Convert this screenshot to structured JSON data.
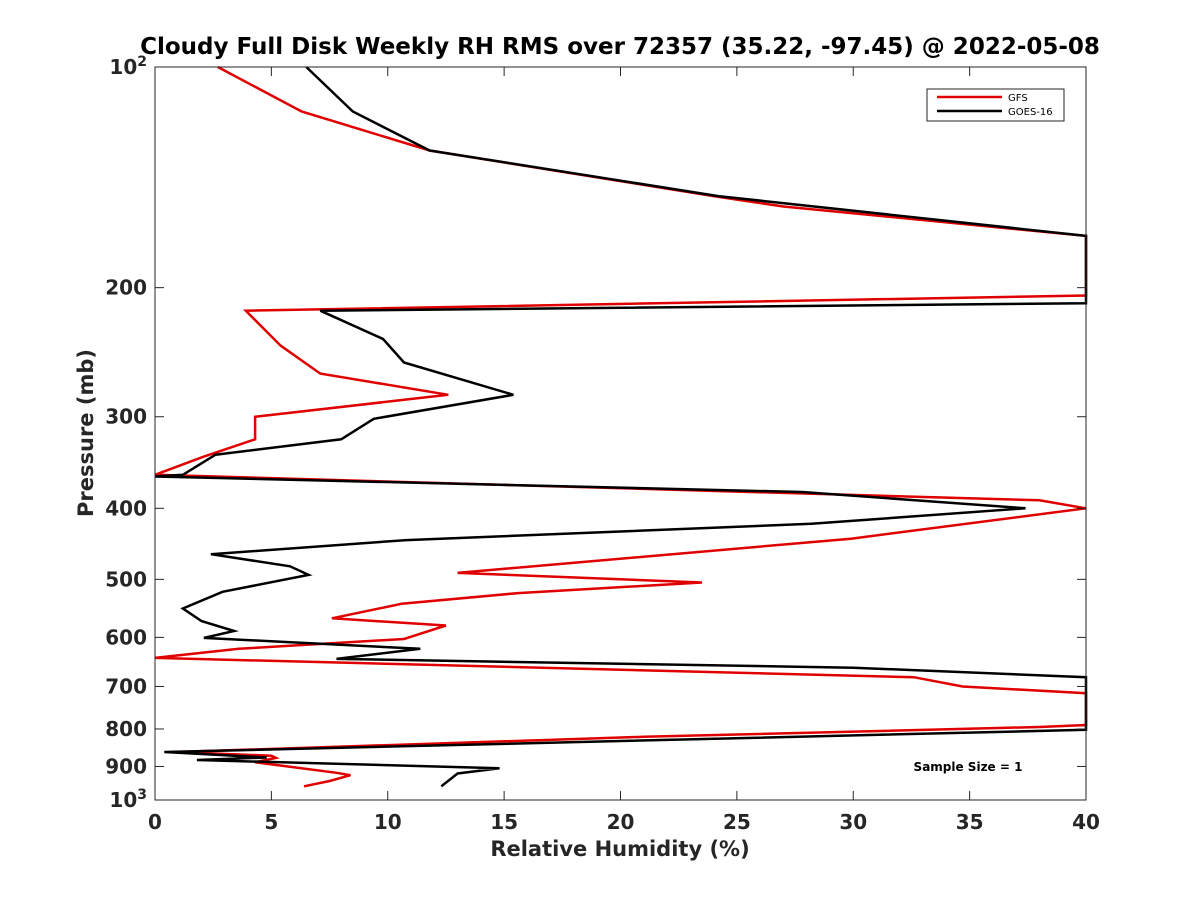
{
  "chart_data": {
    "type": "line",
    "title": "Cloudy Full Disk Weekly RH RMS over 72357 (35.22, -97.45) @ 2022-05-08",
    "xlabel": "Relative Humidity (%)",
    "ylabel": "Pressure (mb)",
    "xlim": [
      0,
      40
    ],
    "ylim": [
      100,
      1000
    ],
    "y_scale": "log",
    "y_reversed": true,
    "grid": false,
    "legend_position": "top-right",
    "x_ticks": [
      0,
      5,
      10,
      15,
      20,
      25,
      30,
      35,
      40
    ],
    "x_tick_labels": [
      "0",
      "5",
      "10",
      "15",
      "20",
      "25",
      "30",
      "35",
      "40"
    ],
    "y_ticks": [
      100,
      200,
      300,
      400,
      500,
      600,
      700,
      800,
      900,
      1000
    ],
    "y_tick_labels": [
      {
        "base": "10",
        "exp": "2"
      },
      {
        "base": "200",
        "exp": ""
      },
      {
        "base": "300",
        "exp": ""
      },
      {
        "base": "400",
        "exp": ""
      },
      {
        "base": "500",
        "exp": ""
      },
      {
        "base": "600",
        "exp": ""
      },
      {
        "base": "700",
        "exp": ""
      },
      {
        "base": "800",
        "exp": ""
      },
      {
        "base": "900",
        "exp": ""
      },
      {
        "base": "10",
        "exp": "3"
      }
    ],
    "annotation": "Sample Size = 1",
    "series": [
      {
        "name": "GFS",
        "color": "#e00000",
        "points": [
          [
            2.7,
            100
          ],
          [
            6.3,
            115
          ],
          [
            11.8,
            130
          ],
          [
            24,
            150
          ],
          [
            27,
            155
          ],
          [
            40,
            170
          ],
          [
            40,
            205
          ],
          [
            3.9,
            215
          ],
          [
            5.4,
            240
          ],
          [
            7.1,
            262
          ],
          [
            12.6,
            280
          ],
          [
            4.3,
            300
          ],
          [
            4.3,
            322
          ],
          [
            2.1,
            340
          ],
          [
            0,
            360
          ],
          [
            38,
            390
          ],
          [
            40,
            400
          ],
          [
            29.9,
            440
          ],
          [
            13,
            490
          ],
          [
            23.5,
            505
          ],
          [
            15.6,
            522
          ],
          [
            10.6,
            540
          ],
          [
            7.6,
            565
          ],
          [
            12.5,
            578
          ],
          [
            10.7,
            603
          ],
          [
            3.6,
            622
          ],
          [
            0,
            640
          ],
          [
            32.6,
            680
          ],
          [
            34.7,
            700
          ],
          [
            40,
            715
          ],
          [
            40,
            790
          ],
          [
            38,
            795
          ],
          [
            21,
            820
          ],
          [
            0.9,
            860
          ],
          [
            5,
            870
          ],
          [
            5.2,
            876
          ],
          [
            4.3,
            888
          ],
          [
            7.8,
            918
          ],
          [
            8.4,
            925
          ],
          [
            7.5,
            942
          ],
          [
            6.4,
            958
          ]
        ]
      },
      {
        "name": "GOES-16",
        "color": "#000000",
        "points": [
          [
            6.5,
            100
          ],
          [
            8.5,
            115
          ],
          [
            11.8,
            130
          ],
          [
            24.2,
            150
          ],
          [
            40,
            170
          ],
          [
            40,
            210
          ],
          [
            7.1,
            215
          ],
          [
            9.8,
            235
          ],
          [
            10.7,
            253
          ],
          [
            15.4,
            280
          ],
          [
            9.4,
            302
          ],
          [
            8,
            322
          ],
          [
            2.6,
            338
          ],
          [
            1.2,
            360
          ],
          [
            0,
            362
          ],
          [
            27.8,
            380
          ],
          [
            37.4,
            400
          ],
          [
            28.2,
            420
          ],
          [
            10.8,
            442
          ],
          [
            2.4,
            462
          ],
          [
            5.8,
            480
          ],
          [
            6.6,
            493
          ],
          [
            2.9,
            520
          ],
          [
            1.2,
            548
          ],
          [
            2,
            570
          ],
          [
            3.4,
            588
          ],
          [
            2.1,
            601
          ],
          [
            11.4,
            622
          ],
          [
            7.8,
            642
          ],
          [
            30,
            660
          ],
          [
            40,
            680
          ],
          [
            40,
            802
          ],
          [
            0.4,
            860
          ],
          [
            4.8,
            875
          ],
          [
            1.8,
            882
          ],
          [
            14.8,
            905
          ],
          [
            13,
            920
          ],
          [
            12.3,
            958
          ]
        ]
      }
    ]
  }
}
